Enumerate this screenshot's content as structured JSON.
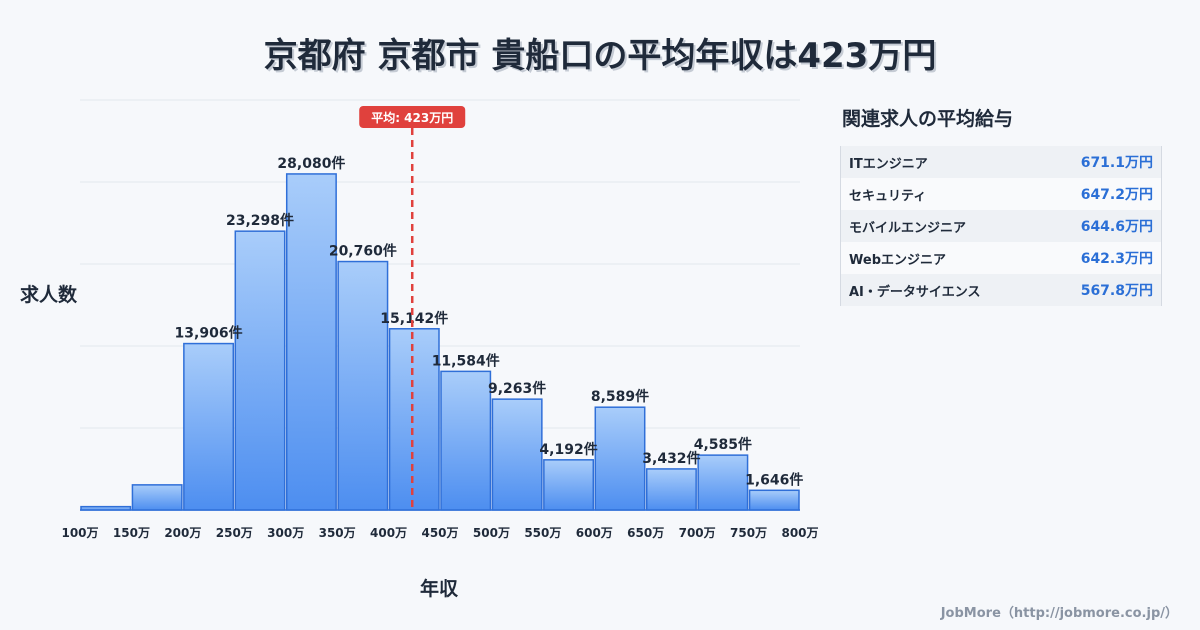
{
  "title": "京都府 京都市 貴船口の平均年収は423万円",
  "colors": {
    "bar_top": "#a9cdfa",
    "bar_bottom": "#4d8ef0",
    "bar_stroke": "#2f6fd8",
    "avg_line": "#e0413d",
    "accent_value": "#2b6fd6",
    "text": "#1f2a3a"
  },
  "chart_data": {
    "type": "bar",
    "categories": [
      "100万",
      "150万",
      "200万",
      "250万",
      "300万",
      "350万",
      "400万",
      "450万",
      "500万",
      "550万",
      "600万",
      "650万",
      "700万",
      "750万",
      "800万"
    ],
    "bins": [
      {
        "from": 100,
        "to": 150,
        "value": 280,
        "label": ""
      },
      {
        "from": 150,
        "to": 200,
        "value": 2100,
        "label": ""
      },
      {
        "from": 200,
        "to": 250,
        "value": 13906,
        "label": "13,906件"
      },
      {
        "from": 250,
        "to": 300,
        "value": 23298,
        "label": "23,298件"
      },
      {
        "from": 300,
        "to": 350,
        "value": 28080,
        "label": "28,080件"
      },
      {
        "from": 350,
        "to": 400,
        "value": 20760,
        "label": "20,760件"
      },
      {
        "from": 400,
        "to": 450,
        "value": 15142,
        "label": "15,142件"
      },
      {
        "from": 450,
        "to": 500,
        "value": 11584,
        "label": "11,584件"
      },
      {
        "from": 500,
        "to": 550,
        "value": 9263,
        "label": "9,263件"
      },
      {
        "from": 550,
        "to": 600,
        "value": 4192,
        "label": "4,192件"
      },
      {
        "from": 600,
        "to": 650,
        "value": 8589,
        "label": "8,589件"
      },
      {
        "from": 650,
        "to": 700,
        "value": 3432,
        "label": "3,432件"
      },
      {
        "from": 700,
        "to": 750,
        "value": 4585,
        "label": "4,585件"
      },
      {
        "from": 750,
        "to": 800,
        "value": 1646,
        "label": "1,646件"
      }
    ],
    "xlim": [
      100,
      800
    ],
    "ylim": [
      0,
      28080
    ],
    "xlabel": "年収",
    "ylabel": "求人数",
    "average": {
      "value": 423,
      "label": "平均: 423万円"
    },
    "grid": true
  },
  "sidebar": {
    "title": "関連求人の平均給与",
    "items": [
      {
        "name": "ITエンジニア",
        "value": "671.1万円"
      },
      {
        "name": "セキュリティ",
        "value": "647.2万円"
      },
      {
        "name": "モバイルエンジニア",
        "value": "644.6万円"
      },
      {
        "name": "Webエンジニア",
        "value": "642.3万円"
      },
      {
        "name": "AI・データサイエンス",
        "value": "567.8万円"
      }
    ]
  },
  "footer": "JobMore（http://jobmore.co.jp/）"
}
